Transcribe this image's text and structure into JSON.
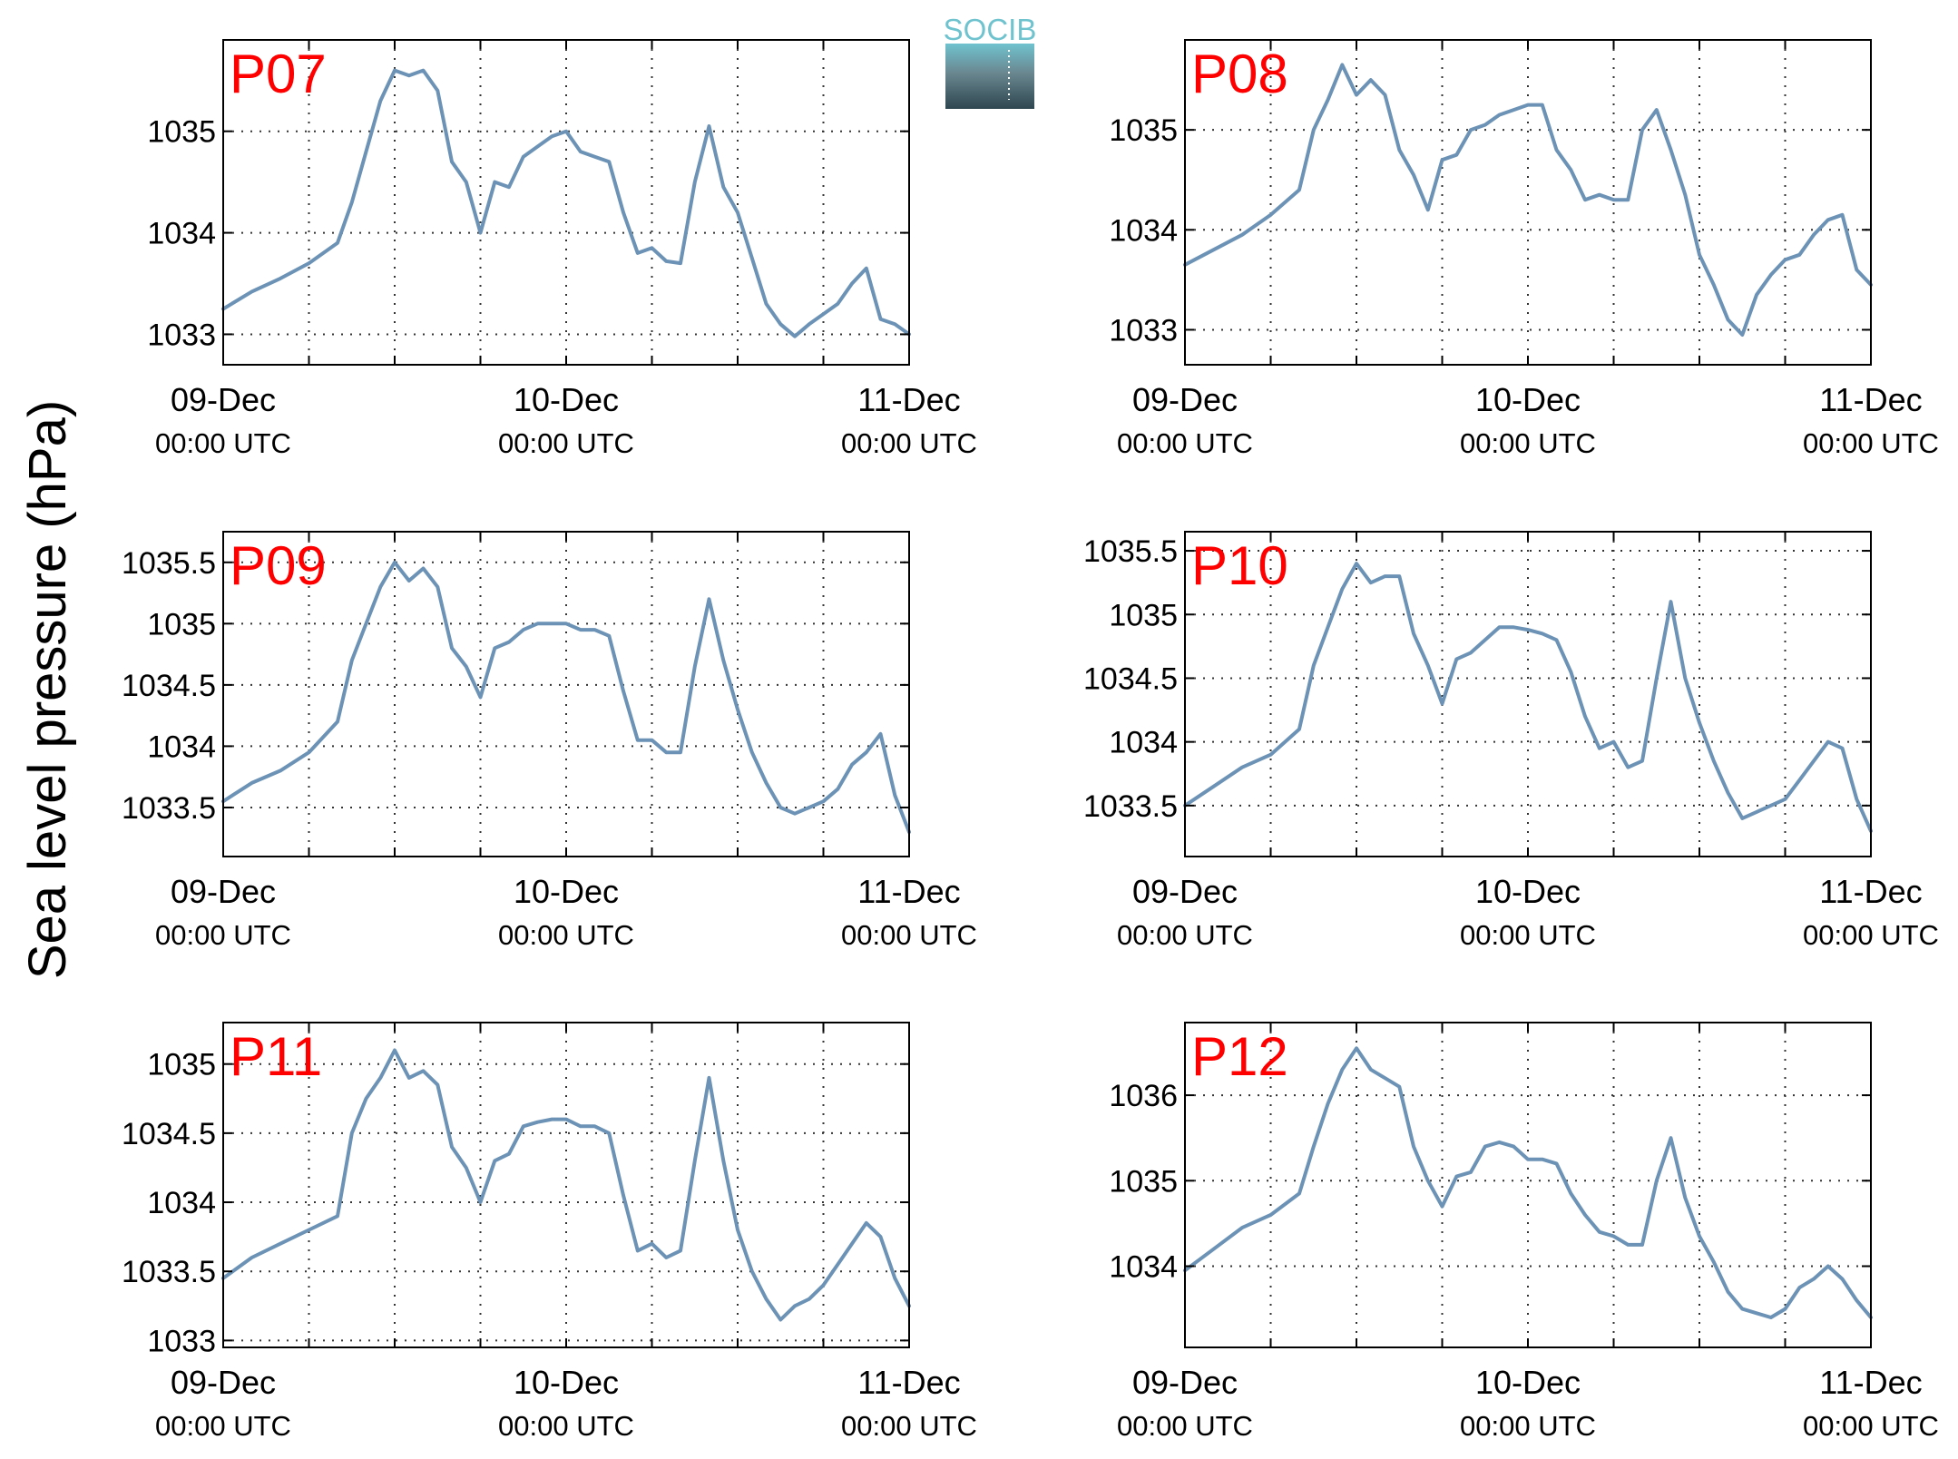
{
  "figure": {
    "ylabel": "Sea level pressure (hPa)",
    "logo_text": "SOCIB",
    "series_color": "#6c93b5",
    "title_color": "#ff0000"
  },
  "chart_data": [
    {
      "type": "line",
      "title": "P07",
      "xlabel": "",
      "ylabel": "",
      "xlim": [
        "09-Dec 00:00 UTC",
        "11-Dec 00:00 UTC"
      ],
      "x_ticks": [
        {
          "date": "09-Dec",
          "time": "00:00 UTC"
        },
        {
          "date": "10-Dec",
          "time": "00:00 UTC"
        },
        {
          "date": "11-Dec",
          "time": "00:00 UTC"
        }
      ],
      "x_hours": [
        0,
        2,
        4,
        6,
        8,
        9,
        10,
        11,
        12,
        13,
        14,
        15,
        16,
        17,
        18,
        19,
        20,
        21,
        22,
        23,
        24,
        25,
        26,
        27,
        28,
        29,
        30,
        31,
        32,
        33,
        34,
        35,
        36,
        37,
        38,
        39,
        40,
        41,
        42,
        43,
        44,
        45,
        46,
        47,
        48
      ],
      "values": [
        1033.25,
        1033.42,
        1033.55,
        1033.7,
        1033.9,
        1034.3,
        1034.8,
        1035.3,
        1035.6,
        1035.55,
        1035.6,
        1035.4,
        1034.7,
        1034.5,
        1034.0,
        1034.5,
        1034.45,
        1034.75,
        1034.85,
        1034.95,
        1035.0,
        1034.8,
        1034.75,
        1034.7,
        1034.2,
        1033.8,
        1033.85,
        1033.72,
        1033.7,
        1034.5,
        1035.05,
        1034.45,
        1034.2,
        1033.75,
        1033.3,
        1033.1,
        1032.98,
        1033.1,
        1033.2,
        1033.3,
        1033.5,
        1033.65,
        1033.15,
        1033.1,
        1033.0
      ],
      "ylim": [
        1032.7,
        1035.9
      ],
      "yticks": [
        1033,
        1034,
        1035
      ],
      "ytick_labels": [
        "1033",
        "1034",
        "1035"
      ],
      "grid": true
    },
    {
      "type": "line",
      "title": "P08",
      "xlabel": "",
      "ylabel": "",
      "xlim": [
        "09-Dec 00:00 UTC",
        "11-Dec 00:00 UTC"
      ],
      "x_ticks": [
        {
          "date": "09-Dec",
          "time": "00:00 UTC"
        },
        {
          "date": "10-Dec",
          "time": "00:00 UTC"
        },
        {
          "date": "11-Dec",
          "time": "00:00 UTC"
        }
      ],
      "x_hours": [
        0,
        2,
        4,
        6,
        8,
        9,
        10,
        11,
        12,
        13,
        14,
        15,
        16,
        17,
        18,
        19,
        20,
        21,
        22,
        23,
        24,
        25,
        26,
        27,
        28,
        29,
        30,
        31,
        32,
        33,
        34,
        35,
        36,
        37,
        38,
        39,
        40,
        41,
        42,
        43,
        44,
        45,
        46,
        47,
        48
      ],
      "values": [
        1033.65,
        1033.8,
        1033.95,
        1034.15,
        1034.4,
        1035.0,
        1035.3,
        1035.65,
        1035.35,
        1035.5,
        1035.35,
        1034.8,
        1034.55,
        1034.2,
        1034.7,
        1034.75,
        1035.0,
        1035.05,
        1035.15,
        1035.2,
        1035.25,
        1035.25,
        1034.8,
        1034.6,
        1034.3,
        1034.35,
        1034.3,
        1034.3,
        1035.0,
        1035.2,
        1034.8,
        1034.35,
        1033.75,
        1033.45,
        1033.1,
        1032.95,
        1033.35,
        1033.55,
        1033.7,
        1033.75,
        1033.95,
        1034.1,
        1034.15,
        1033.6,
        1033.45
      ],
      "ylim": [
        1032.65,
        1035.9
      ],
      "yticks": [
        1033,
        1034,
        1035
      ],
      "ytick_labels": [
        "1033",
        "1034",
        "1035"
      ],
      "grid": true
    },
    {
      "type": "line",
      "title": "P09",
      "xlabel": "",
      "ylabel": "",
      "xlim": [
        "09-Dec 00:00 UTC",
        "11-Dec 00:00 UTC"
      ],
      "x_ticks": [
        {
          "date": "09-Dec",
          "time": "00:00 UTC"
        },
        {
          "date": "10-Dec",
          "time": "00:00 UTC"
        },
        {
          "date": "11-Dec",
          "time": "00:00 UTC"
        }
      ],
      "x_hours": [
        0,
        2,
        4,
        6,
        8,
        9,
        10,
        11,
        12,
        13,
        14,
        15,
        16,
        17,
        18,
        19,
        20,
        21,
        22,
        23,
        24,
        25,
        26,
        27,
        28,
        29,
        30,
        31,
        32,
        33,
        34,
        35,
        36,
        37,
        38,
        39,
        40,
        41,
        42,
        43,
        44,
        45,
        46,
        47,
        48
      ],
      "values": [
        1033.55,
        1033.7,
        1033.8,
        1033.95,
        1034.2,
        1034.7,
        1035.0,
        1035.3,
        1035.5,
        1035.35,
        1035.45,
        1035.3,
        1034.8,
        1034.65,
        1034.4,
        1034.8,
        1034.85,
        1034.95,
        1035.0,
        1035.0,
        1035.0,
        1034.95,
        1034.95,
        1034.9,
        1034.45,
        1034.05,
        1034.05,
        1033.95,
        1033.95,
        1034.65,
        1035.2,
        1034.7,
        1034.3,
        1033.95,
        1033.7,
        1033.5,
        1033.45,
        1033.5,
        1033.55,
        1033.65,
        1033.85,
        1033.95,
        1034.1,
        1033.6,
        1033.3
      ],
      "ylim": [
        1033.1,
        1035.75
      ],
      "yticks": [
        1033.5,
        1034,
        1034.5,
        1035,
        1035.5
      ],
      "ytick_labels": [
        "1033.5",
        "1034",
        "1034.5",
        "1035",
        "1035.5"
      ],
      "grid": true
    },
    {
      "type": "line",
      "title": "P10",
      "xlabel": "",
      "ylabel": "",
      "xlim": [
        "09-Dec 00:00 UTC",
        "11-Dec 00:00 UTC"
      ],
      "x_ticks": [
        {
          "date": "09-Dec",
          "time": "00:00 UTC"
        },
        {
          "date": "10-Dec",
          "time": "00:00 UTC"
        },
        {
          "date": "11-Dec",
          "time": "00:00 UTC"
        }
      ],
      "x_hours": [
        0,
        2,
        4,
        6,
        8,
        9,
        10,
        11,
        12,
        13,
        14,
        15,
        16,
        17,
        18,
        19,
        20,
        21,
        22,
        23,
        24,
        25,
        26,
        27,
        28,
        29,
        30,
        31,
        32,
        33,
        34,
        35,
        36,
        37,
        38,
        39,
        40,
        41,
        42,
        43,
        44,
        45,
        46,
        47,
        48
      ],
      "values": [
        1033.5,
        1033.65,
        1033.8,
        1033.9,
        1034.1,
        1034.6,
        1034.9,
        1035.2,
        1035.4,
        1035.25,
        1035.3,
        1035.3,
        1034.85,
        1034.6,
        1034.3,
        1034.65,
        1034.7,
        1034.8,
        1034.9,
        1034.9,
        1034.88,
        1034.85,
        1034.8,
        1034.55,
        1034.2,
        1033.95,
        1034.0,
        1033.8,
        1033.85,
        1034.5,
        1035.1,
        1034.5,
        1034.15,
        1033.85,
        1033.6,
        1033.4,
        1033.45,
        1033.5,
        1033.55,
        1033.7,
        1033.85,
        1034.0,
        1033.95,
        1033.55,
        1033.3
      ],
      "ylim": [
        1033.1,
        1035.65
      ],
      "yticks": [
        1033.5,
        1034,
        1034.5,
        1035,
        1035.5
      ],
      "ytick_labels": [
        "1033.5",
        "1034",
        "1034.5",
        "1035",
        "1035.5"
      ],
      "grid": true
    },
    {
      "type": "line",
      "title": "P11",
      "xlabel": "",
      "ylabel": "",
      "xlim": [
        "09-Dec 00:00 UTC",
        "11-Dec 00:00 UTC"
      ],
      "x_ticks": [
        {
          "date": "09-Dec",
          "time": "00:00 UTC"
        },
        {
          "date": "10-Dec",
          "time": "00:00 UTC"
        },
        {
          "date": "11-Dec",
          "time": "00:00 UTC"
        }
      ],
      "x_hours": [
        0,
        2,
        4,
        6,
        8,
        9,
        10,
        11,
        12,
        13,
        14,
        15,
        16,
        17,
        18,
        19,
        20,
        21,
        22,
        23,
        24,
        25,
        26,
        27,
        28,
        29,
        30,
        31,
        32,
        33,
        34,
        35,
        36,
        37,
        38,
        39,
        40,
        41,
        42,
        43,
        44,
        45,
        46,
        47,
        48
      ],
      "values": [
        1033.45,
        1033.6,
        1033.7,
        1033.8,
        1033.9,
        1034.5,
        1034.75,
        1034.9,
        1035.1,
        1034.9,
        1034.95,
        1034.85,
        1034.4,
        1034.25,
        1034.0,
        1034.3,
        1034.35,
        1034.55,
        1034.58,
        1034.6,
        1034.6,
        1034.55,
        1034.55,
        1034.5,
        1034.05,
        1033.65,
        1033.7,
        1033.6,
        1033.65,
        1034.3,
        1034.9,
        1034.3,
        1033.8,
        1033.5,
        1033.3,
        1033.15,
        1033.25,
        1033.3,
        1033.4,
        1033.55,
        1033.7,
        1033.85,
        1033.75,
        1033.45,
        1033.25
      ],
      "ylim": [
        1032.95,
        1035.3
      ],
      "yticks": [
        1033,
        1033.5,
        1034,
        1034.5,
        1035
      ],
      "ytick_labels": [
        "1033",
        "1033.5",
        "1034",
        "1034.5",
        "1035"
      ],
      "grid": true
    },
    {
      "type": "line",
      "title": "P12",
      "xlabel": "",
      "ylabel": "",
      "xlim": [
        "09-Dec 00:00 UTC",
        "11-Dec 00:00 UTC"
      ],
      "x_ticks": [
        {
          "date": "09-Dec",
          "time": "00:00 UTC"
        },
        {
          "date": "10-Dec",
          "time": "00:00 UTC"
        },
        {
          "date": "11-Dec",
          "time": "00:00 UTC"
        }
      ],
      "x_hours": [
        0,
        2,
        4,
        6,
        8,
        9,
        10,
        11,
        12,
        13,
        14,
        15,
        16,
        17,
        18,
        19,
        20,
        21,
        22,
        23,
        24,
        25,
        26,
        27,
        28,
        29,
        30,
        31,
        32,
        33,
        34,
        35,
        36,
        37,
        38,
        39,
        40,
        41,
        42,
        43,
        44,
        45,
        46,
        47,
        48
      ],
      "values": [
        1033.95,
        1034.2,
        1034.45,
        1034.6,
        1034.85,
        1035.4,
        1035.9,
        1036.3,
        1036.55,
        1036.3,
        1036.2,
        1036.1,
        1035.4,
        1035.0,
        1034.7,
        1035.05,
        1035.1,
        1035.4,
        1035.45,
        1035.4,
        1035.25,
        1035.25,
        1035.2,
        1034.85,
        1034.6,
        1034.4,
        1034.35,
        1034.25,
        1034.25,
        1035.0,
        1035.5,
        1034.8,
        1034.35,
        1034.05,
        1033.7,
        1033.5,
        1033.45,
        1033.4,
        1033.5,
        1033.75,
        1033.85,
        1034.0,
        1033.85,
        1033.6,
        1033.4
      ],
      "ylim": [
        1033.05,
        1036.85
      ],
      "yticks": [
        1034,
        1035,
        1036
      ],
      "ytick_labels": [
        "1034",
        "1035",
        "1036"
      ],
      "grid": true
    }
  ]
}
